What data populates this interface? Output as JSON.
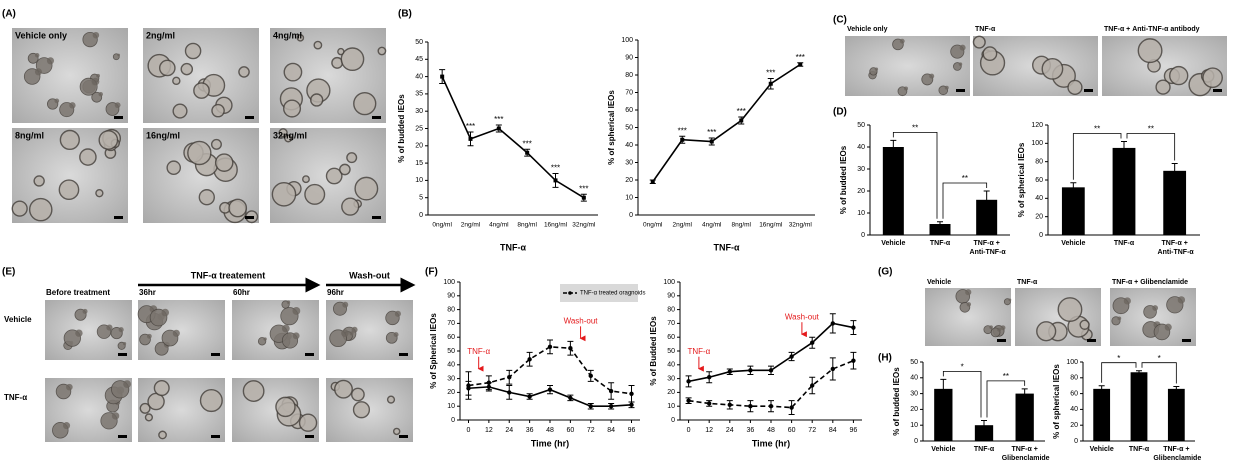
{
  "panel_labels": [
    "(A)",
    "(B)",
    "(C)",
    "(D)",
    "(E)",
    "(F)",
    "(G)",
    "(H)"
  ],
  "image_panels": {
    "A": {
      "labels": [
        "Vehicle only",
        "2ng/ml",
        "4ng/ml",
        "8ng/ml",
        "16ng/ml",
        "32ng/ml"
      ]
    },
    "C": {
      "labels": [
        "Vehicle only",
        "TNF-α",
        "TNF-α + Anti-TNF-α antibody"
      ]
    },
    "E": {
      "phases": [
        "TNF-α treatement",
        "Wash-out"
      ],
      "columns": [
        "Before treatment",
        "36hr",
        "60hr",
        "96hr"
      ],
      "rows": [
        "Vehicle",
        "TNF-α"
      ]
    },
    "G": {
      "labels": [
        "Vehicle",
        "TNF-α",
        "TNF-α + Glibenclamide"
      ]
    }
  },
  "chart_data": [
    {
      "type": "line",
      "ylabel": "% of budded IEOs",
      "xlabel": "TNF-α",
      "color": "#000000",
      "categories": [
        "0ng/ml",
        "2ng/ml",
        "4ng/ml",
        "8ng/ml",
        "16ng/ml",
        "32ng/ml"
      ],
      "values": [
        40,
        22,
        25,
        18,
        10,
        5
      ],
      "errors": [
        2,
        2,
        1,
        1,
        2,
        1
      ],
      "significance": [
        null,
        "***",
        "***",
        "***",
        "***",
        "***"
      ],
      "ylim": [
        0,
        50
      ],
      "yticks": [
        0,
        5,
        10,
        15,
        20,
        25,
        30,
        35,
        40,
        45,
        50
      ]
    },
    {
      "type": "line",
      "ylabel": "% of spherical IEOs",
      "xlabel": "TNF-α",
      "color": "#000000",
      "categories": [
        "0ng/ml",
        "2ng/ml",
        "4ng/ml",
        "8ng/ml",
        "16ng/ml",
        "32ng/ml"
      ],
      "values": [
        19,
        43,
        42,
        54,
        75,
        86
      ],
      "errors": [
        1,
        2,
        2,
        2,
        3,
        1
      ],
      "significance": [
        null,
        "***",
        "***",
        "***",
        "***",
        "***"
      ],
      "ylim": [
        0,
        100
      ],
      "yticks": [
        0,
        10,
        20,
        30,
        40,
        50,
        60,
        70,
        80,
        90,
        100
      ]
    },
    {
      "type": "bar",
      "ylabel": "% of budded IEOs",
      "color": "#000000",
      "categories": [
        "Vehicle",
        "TNF-α",
        "TNF-α + Anti-TNF-α"
      ],
      "values": [
        40,
        5,
        16
      ],
      "errors": [
        3,
        1,
        4
      ],
      "significance": [
        "**",
        "**"
      ],
      "ylim": [
        0,
        50
      ],
      "yticks": [
        0,
        10,
        20,
        30,
        40,
        50
      ]
    },
    {
      "type": "bar",
      "ylabel": "% of spherical IEOs",
      "color": "#000000",
      "categories": [
        "Vehicle",
        "TNF-α",
        "TNF-α + Anti-TNF-α"
      ],
      "values": [
        52,
        95,
        70
      ],
      "errors": [
        5,
        7,
        8
      ],
      "significance": [
        "**",
        "**"
      ],
      "ylim": [
        0,
        120
      ],
      "yticks": [
        0,
        20,
        40,
        60,
        80,
        100,
        120
      ]
    },
    {
      "type": "line",
      "ylabel": "% of Spherical IEOs",
      "xlabel": "Time (hr)",
      "x": [
        0,
        12,
        24,
        36,
        48,
        60,
        72,
        84,
        96
      ],
      "xlim": [
        -5,
        101
      ],
      "xticks": [
        0,
        12,
        24,
        36,
        48,
        60,
        72,
        84,
        96
      ],
      "ylim": [
        0,
        100
      ],
      "yticks": [
        0,
        10,
        20,
        30,
        40,
        50,
        60,
        70,
        80,
        90,
        100
      ],
      "legend": "upper right",
      "series": [
        {
          "color": "#000000",
          "dash": false,
          "values": [
            23,
            24,
            20,
            17,
            22,
            16,
            10,
            10,
            11
          ],
          "errors": [
            5,
            3,
            5,
            2,
            3,
            2,
            2,
            2,
            2
          ]
        },
        {
          "name": "TNF-α treated oragnoids",
          "color": "#000000",
          "dash": true,
          "values": [
            25,
            27,
            31,
            44,
            53,
            52,
            32,
            21,
            19
          ],
          "errors": [
            10,
            5,
            5,
            5,
            5,
            5,
            4,
            6,
            6
          ]
        }
      ],
      "annotations": [
        {
          "text": "TNF-α",
          "x": 6,
          "color": "#e41a1c"
        },
        {
          "text": "Wash-out",
          "x": 66,
          "color": "#e41a1c"
        }
      ]
    },
    {
      "type": "line",
      "ylabel": "% of Budded IEOs",
      "xlabel": "Time (hr)",
      "x": [
        0,
        12,
        24,
        36,
        48,
        60,
        72,
        84,
        96
      ],
      "xlim": [
        -5,
        101
      ],
      "xticks": [
        0,
        12,
        24,
        36,
        48,
        60,
        72,
        84,
        96
      ],
      "ylim": [
        0,
        100
      ],
      "yticks": [
        0,
        10,
        20,
        30,
        40,
        50,
        60,
        70,
        80,
        90,
        100
      ],
      "series": [
        {
          "color": "#000000",
          "dash": false,
          "values": [
            28,
            31,
            35,
            36,
            36,
            46,
            56,
            70,
            67
          ],
          "errors": [
            4,
            4,
            2,
            3,
            3,
            3,
            4,
            7,
            5
          ]
        },
        {
          "color": "#000000",
          "dash": true,
          "values": [
            14,
            12,
            11,
            10,
            10,
            9,
            25,
            37,
            43
          ],
          "errors": [
            2,
            2,
            3,
            4,
            4,
            5,
            6,
            8,
            6
          ]
        }
      ],
      "annotations": [
        {
          "text": "TNF-α",
          "x": 6,
          "color": "#e41a1c"
        },
        {
          "text": "Wash-out",
          "x": 66,
          "color": "#e41a1c"
        }
      ]
    },
    {
      "type": "bar",
      "ylabel": "% of budded IEOs",
      "color": "#000000",
      "categories": [
        "Vehicle",
        "TNF-α",
        "TNF-α + Glibenclamide"
      ],
      "values": [
        33,
        10,
        30
      ],
      "errors": [
        6,
        3,
        3
      ],
      "significance": [
        "*",
        "**"
      ],
      "ylim": [
        0,
        50
      ],
      "yticks": [
        0,
        10,
        20,
        30,
        40,
        50
      ]
    },
    {
      "type": "bar",
      "ylabel": "% of spherical IEOs",
      "color": "#000000",
      "categories": [
        "Vehicle",
        "TNF-α",
        "TNF-α + Glibenclamide"
      ],
      "values": [
        66,
        87,
        66
      ],
      "errors": [
        4,
        2,
        3
      ],
      "significance": [
        "*",
        "*"
      ],
      "ylim": [
        0,
        100
      ],
      "yticks": [
        0,
        20,
        40,
        60,
        80,
        100
      ]
    }
  ]
}
